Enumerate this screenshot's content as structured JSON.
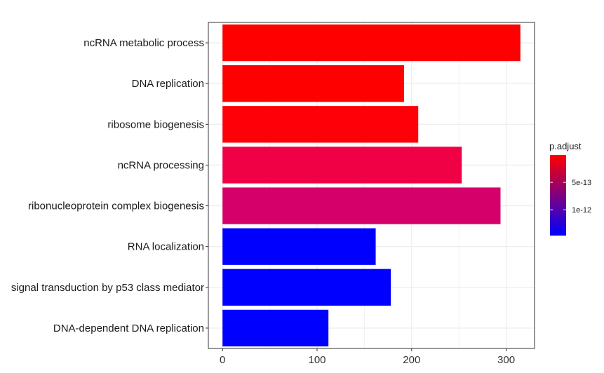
{
  "chart_data": {
    "type": "bar",
    "orientation": "horizontal",
    "categories": [
      "ncRNA metabolic process",
      "DNA replication",
      "ribosome biogenesis",
      "ncRNA processing",
      "ribonucleoprotein complex biogenesis",
      "RNA localization",
      "signal transduction by p53 class mediator",
      "DNA-dependent DNA replication"
    ],
    "values": [
      315,
      192,
      207,
      253,
      294,
      162,
      178,
      112
    ],
    "bar_colors": [
      "#FF0000",
      "#FF0000",
      "#FE0008",
      "#F00045",
      "#D6006A",
      "#0000FF",
      "#0000FF",
      "#0000FF"
    ],
    "xlim": [
      -15,
      330
    ],
    "x_ticks": [
      0,
      100,
      200,
      300
    ],
    "x_tick_labels": [
      "0",
      "100",
      "200",
      "300"
    ],
    "grid": true,
    "legend": {
      "title": "p.adjust",
      "placement": "right",
      "type": "colorbar",
      "gradient": [
        "#FF0000",
        "#0000FF"
      ],
      "labels": [
        "5e-13",
        "1e-12"
      ],
      "label_positions": [
        0.34,
        0.68
      ]
    },
    "xlabel": "",
    "ylabel": ""
  },
  "colors": {
    "panel_border": "#333333",
    "grid": "#EBEBEB",
    "background": "#FFFFFF"
  }
}
